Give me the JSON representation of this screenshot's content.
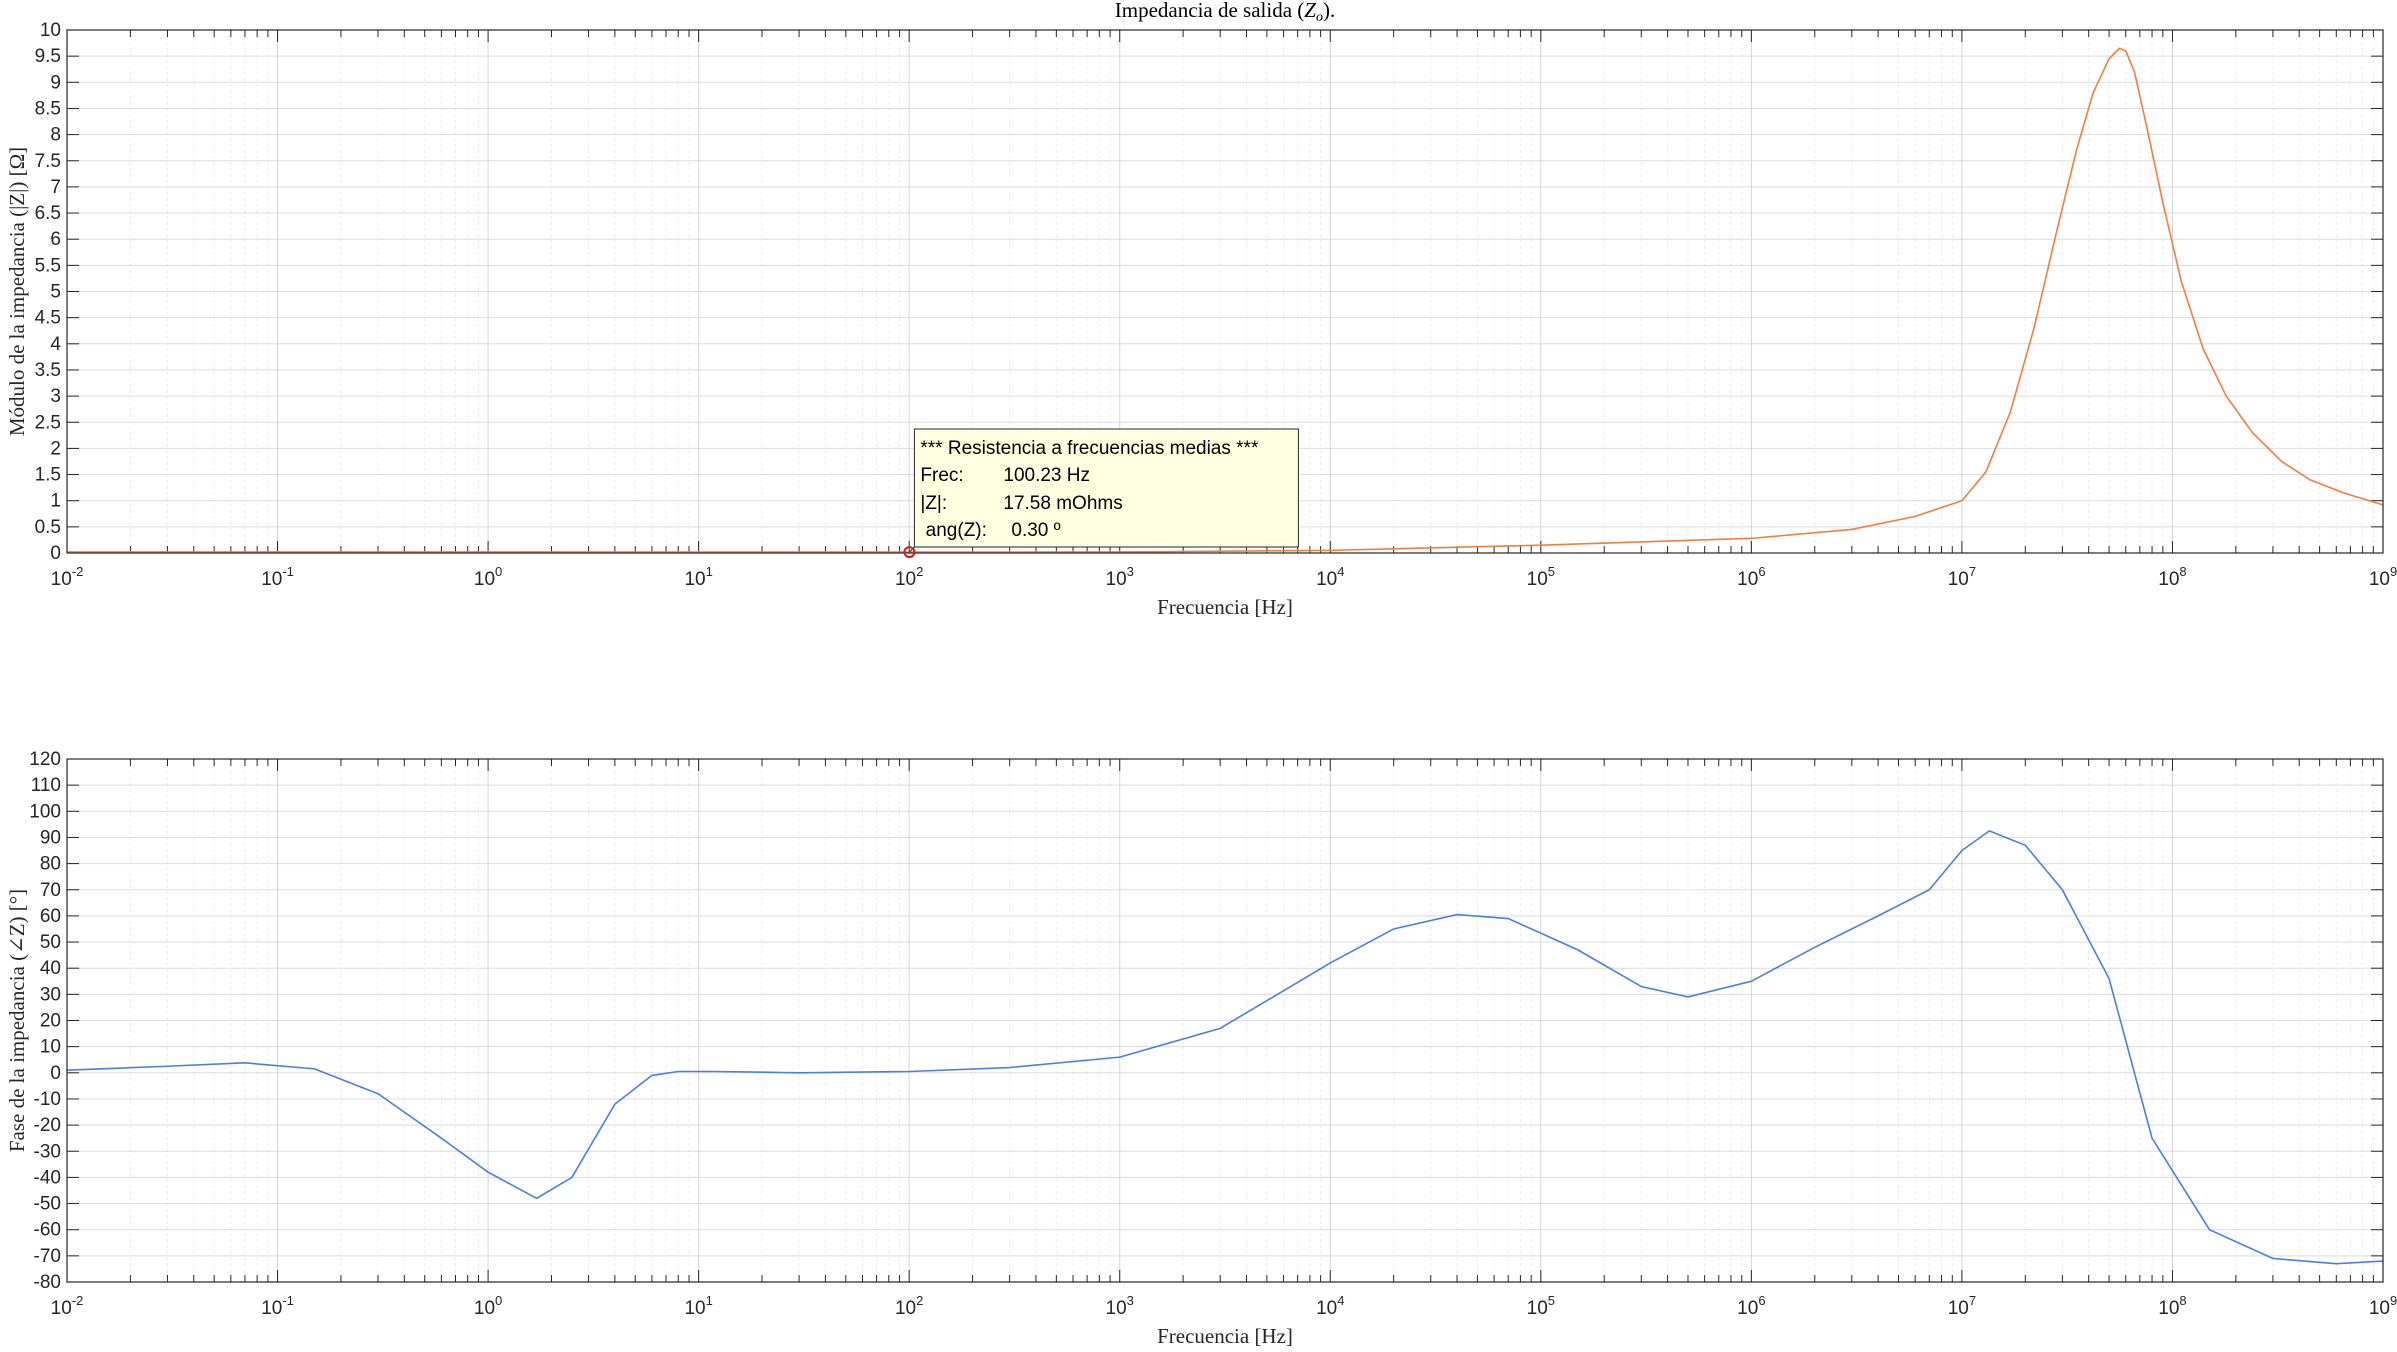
{
  "chart_data": [
    {
      "type": "line",
      "title": "Impedancia de salida (Z_o).",
      "title_plain": "Impedancia de salida (",
      "title_sym": "Z",
      "title_sub": "o",
      "title_end": ").",
      "xlabel": "Frecuencia [Hz]",
      "ylabel": "Módulo de la impedancia (|Z|) [Ω]",
      "xscale": "log",
      "xlim": [
        0.01,
        1000000000
      ],
      "ylim": [
        0,
        10
      ],
      "yticks": [
        "0",
        "0.5",
        "1",
        "1.5",
        "2",
        "2.5",
        "3",
        "3.5",
        "4",
        "4.5",
        "5",
        "5.5",
        "6",
        "6.5",
        "7",
        "7.5",
        "8",
        "8.5",
        "9",
        "9.5",
        "10"
      ],
      "xtick_base": "10",
      "xtick_exponents": [
        "-2",
        "-1",
        "0",
        "1",
        "2",
        "3",
        "4",
        "5",
        "6",
        "7",
        "8",
        "9"
      ],
      "grid": true,
      "series_color": "#f07e3f",
      "x": [
        0.01,
        1,
        10,
        100,
        1000,
        10000,
        100000,
        1000000,
        3000000,
        6000000,
        10000000,
        13000000,
        17000000,
        22000000,
        28000000,
        35000000,
        42000000,
        50000000,
        56000000,
        60000000,
        66000000,
        75000000,
        90000000,
        110000000,
        140000000,
        180000000,
        240000000,
        330000000,
        450000000,
        650000000,
        1000000000
      ],
      "y": [
        0.02,
        0.02,
        0.018,
        0.018,
        0.02,
        0.05,
        0.15,
        0.28,
        0.45,
        0.7,
        1.0,
        1.55,
        2.7,
        4.3,
        6.1,
        7.7,
        8.8,
        9.45,
        9.65,
        9.6,
        9.2,
        8.2,
        6.7,
        5.2,
        3.9,
        3.0,
        2.3,
        1.75,
        1.4,
        1.15,
        0.92
      ],
      "datatip": {
        "x": 100.23,
        "y": 0.01758,
        "title": "*** Resistencia a frecuencias medias ***",
        "rows": [
          {
            "label": "Frec:",
            "value": "100.23 Hz"
          },
          {
            "label": "|Z|:",
            "value": "17.58 mOhms"
          },
          {
            "label": " ang(Z):",
            "value": "0.30 º"
          }
        ],
        "marker_color": "#cc1f1f",
        "box_color": "#ffffe1"
      }
    },
    {
      "type": "line",
      "xlabel": "Frecuencia [Hz]",
      "ylabel": "Fase de la impedancia (∠Z) [°]",
      "xscale": "log",
      "xlim": [
        0.01,
        1000000000
      ],
      "ylim": [
        -80,
        120
      ],
      "yticks": [
        "-80",
        "-70",
        "-60",
        "-50",
        "-40",
        "-30",
        "-20",
        "-10",
        "0",
        "10",
        "20",
        "30",
        "40",
        "50",
        "60",
        "70",
        "80",
        "90",
        "100",
        "110",
        "120"
      ],
      "xtick_base": "10",
      "xtick_exponents": [
        "-2",
        "-1",
        "0",
        "1",
        "2",
        "3",
        "4",
        "5",
        "6",
        "7",
        "8",
        "9"
      ],
      "grid": true,
      "series_color": "#4a7fe0",
      "x": [
        0.01,
        0.03,
        0.07,
        0.15,
        0.3,
        0.6,
        1.0,
        1.7,
        2.5,
        4,
        6,
        8,
        12,
        30,
        100,
        300,
        1000,
        3000,
        10000,
        20000,
        40000,
        70000,
        150000,
        300000,
        500000,
        1000000,
        2000000,
        4000000,
        7000000,
        10000000,
        13500000,
        20000000,
        30000000,
        50000000,
        80000000,
        150000000,
        300000000,
        600000000,
        1000000000
      ],
      "y": [
        1,
        2.5,
        3.8,
        1.5,
        -8,
        -25,
        -38,
        -48,
        -40,
        -12,
        -1,
        0.5,
        0.5,
        0,
        0.5,
        2,
        6,
        17,
        42,
        55,
        60.5,
        59,
        47,
        33,
        29,
        35,
        48,
        60,
        70,
        85,
        92.5,
        87,
        70,
        36,
        -25,
        -60,
        -71,
        -73,
        -72
      ]
    }
  ]
}
